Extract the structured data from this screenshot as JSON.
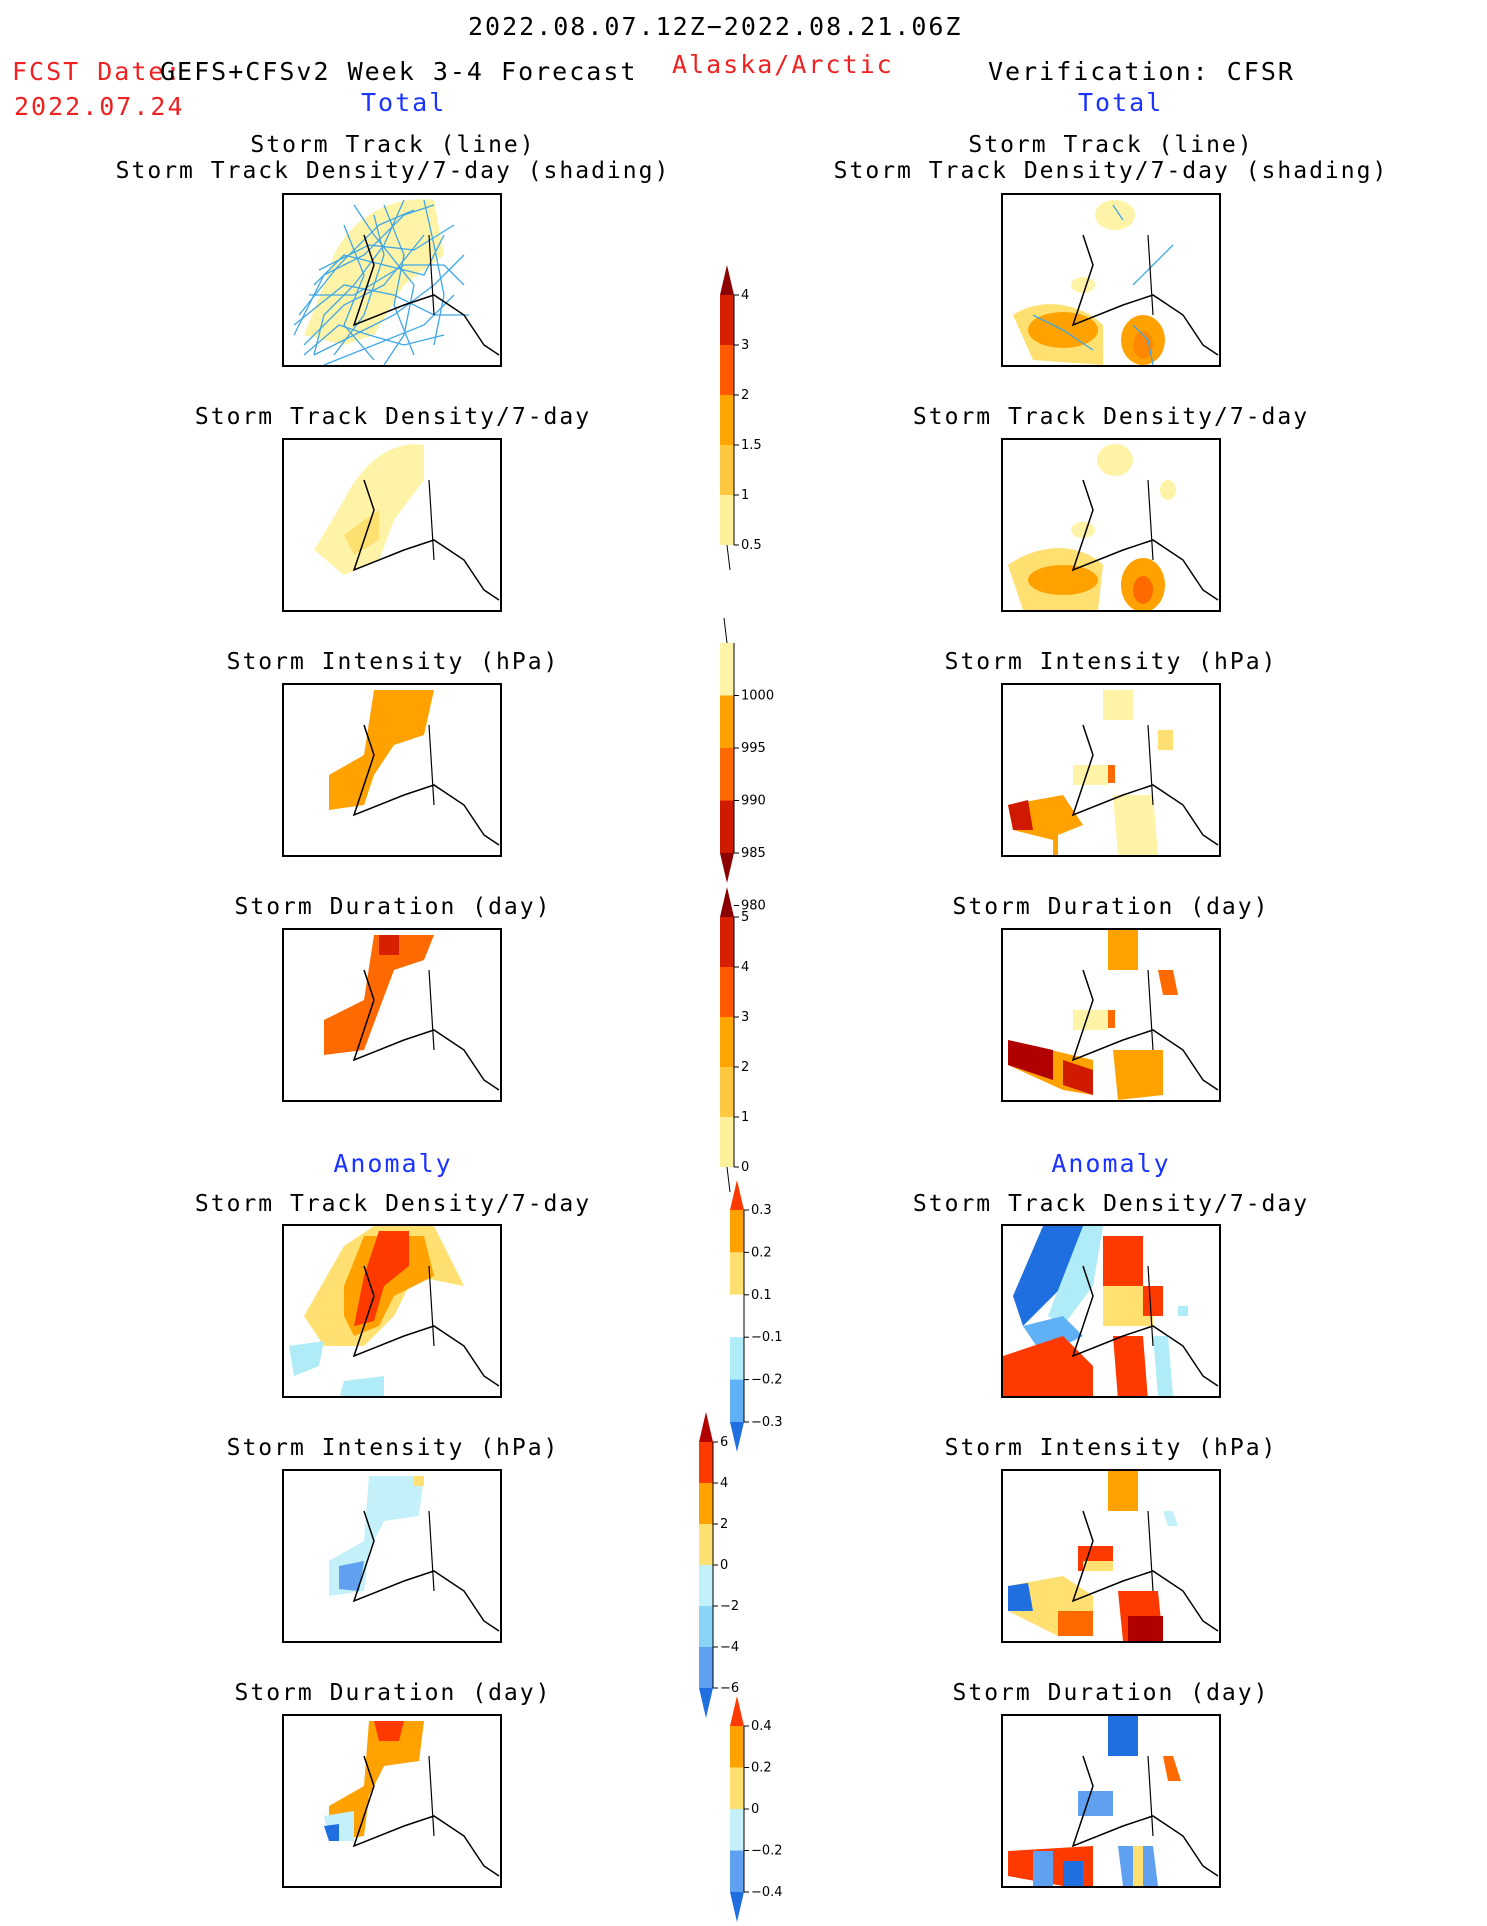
{
  "header": {
    "period": "2022.08.07.12Z−2022.08.21.06Z",
    "fcst_date_label": "FCST Date:",
    "fcst_date": "2022.07.24",
    "model": "GEFS+CFSv2 Week 3-4 Forecast",
    "region": "Alaska/Arctic",
    "verification": "Verification: CFSR"
  },
  "columns": {
    "left_total": "Total",
    "right_total": "Total",
    "left_anomaly": "Anomaly",
    "right_anomaly": "Anomaly"
  },
  "panel_titles": {
    "track_line": "Storm Track (line)",
    "track_shading": "Storm Track Density/7-day (shading)",
    "density": "Storm Track Density/7-day",
    "intensity": "Storm Intensity (hPa)",
    "duration": "Storm Duration (day)"
  },
  "colorbars": {
    "density_total": {
      "ticks": [
        "4",
        "3",
        "2",
        "1.5",
        "1",
        "0.5"
      ],
      "colors": [
        "#8b0000",
        "#d62000",
        "#ff5a00",
        "#ffa500",
        "#ffc840",
        "#fff09b"
      ]
    },
    "intensity_total": {
      "ticks": [
        "1000",
        "995",
        "990",
        "985",
        "980"
      ],
      "colors": [
        "#fff3a8",
        "#ffa200",
        "#ff6a00",
        "#d01a00",
        "#8b0000"
      ]
    },
    "duration_total": {
      "ticks": [
        "5",
        "4",
        "3",
        "2",
        "1",
        "0"
      ],
      "colors": [
        "#8b0000",
        "#d62000",
        "#ff5a00",
        "#ffa500",
        "#ffc840",
        "#fff09b"
      ]
    },
    "density_anom": {
      "ticks": [
        "0.3",
        "0.2",
        "0.1",
        "−0.1",
        "−0.2",
        "−0.3"
      ],
      "colors": [
        "#ff3a00",
        "#ffa200",
        "#ffe070",
        "#ffffff",
        "#b0ecf8",
        "#5fb0f5",
        "#1f6fe0"
      ]
    },
    "intensity_anom": {
      "ticks": [
        "6",
        "4",
        "2",
        "0",
        "−2",
        "−4",
        "−6"
      ],
      "colors": [
        "#b00000",
        "#ff3a00",
        "#ffa200",
        "#ffe070",
        "#c4f0fa",
        "#8ad4f8",
        "#5fa0f0",
        "#1f6fe0"
      ]
    },
    "duration_anom": {
      "ticks": [
        "0.4",
        "0.2",
        "0",
        "−0.2",
        "−0.4"
      ],
      "colors": [
        "#ff3a00",
        "#ffa200",
        "#ffe070",
        "#c4f0fa",
        "#5fa0f0",
        "#1f6fe0"
      ]
    }
  }
}
